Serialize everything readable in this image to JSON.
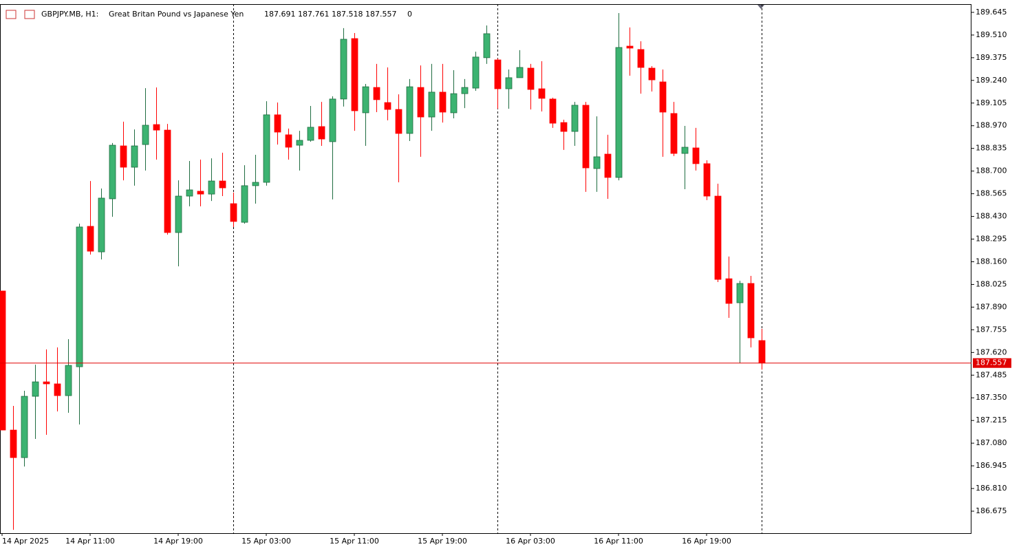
{
  "chart_data": {
    "type": "candlestick",
    "header": {
      "symbol": "GBPJPY.MB, H1:",
      "description": "Great Britan Pound vs Japanese Yen",
      "values": [
        187.691,
        187.761,
        187.518,
        187.557,
        0
      ]
    },
    "categories": [
      "14 Apr 2025",
      null,
      null,
      null,
      null,
      null,
      null,
      null,
      "14 Apr 11:00",
      null,
      null,
      null,
      null,
      null,
      null,
      null,
      "14 Apr 19:00",
      null,
      null,
      null,
      null,
      null,
      null,
      null,
      "15 Apr 03:00",
      null,
      null,
      null,
      null,
      null,
      null,
      null,
      "15 Apr 11:00",
      null,
      null,
      null,
      null,
      null,
      null,
      null,
      "15 Apr 19:00",
      null,
      null,
      null,
      null,
      null,
      null,
      null,
      "16 Apr 03:00",
      null,
      null,
      null,
      null,
      null,
      null,
      null,
      "16 Apr 11:00",
      null,
      null,
      null,
      null,
      null,
      null,
      null,
      "16 Apr 19:00",
      null,
      null,
      null,
      null,
      null
    ],
    "open": [
      187.986,
      187.158,
      186.994,
      187.359,
      187.445,
      187.433,
      187.363,
      187.535,
      188.371,
      188.219,
      188.535,
      188.85,
      188.723,
      188.858,
      188.977,
      188.944,
      188.334,
      188.551,
      188.58,
      188.563,
      188.641,
      188.506,
      188.395,
      188.613,
      188.633,
      189.035,
      188.916,
      188.854,
      188.883,
      188.965,
      188.875,
      189.129,
      189.489,
      189.047,
      189.198,
      189.108,
      189.067,
      188.924,
      189.198,
      189.022,
      189.17,
      189.047,
      189.161,
      189.194,
      189.375,
      189.362,
      189.19,
      189.256,
      189.313,
      189.19,
      189.129,
      188.989,
      188.936,
      189.092,
      188.715,
      188.801,
      188.662,
      189.444,
      189.424,
      189.313,
      189.231,
      189.043,
      188.805,
      188.838,
      188.744,
      188.551,
      188.059,
      187.916,
      188.031,
      187.691
    ],
    "high": [
      187.986,
      187.302,
      187.392,
      187.547,
      187.638,
      187.65,
      187.699,
      188.387,
      188.641,
      188.596,
      188.867,
      188.994,
      188.948,
      189.194,
      189.198,
      188.981,
      188.645,
      188.76,
      188.768,
      188.776,
      188.809,
      188.572,
      188.735,
      188.797,
      189.116,
      189.108,
      188.953,
      188.94,
      189.088,
      189.112,
      189.145,
      189.551,
      189.522,
      189.219,
      189.338,
      189.317,
      189.157,
      189.248,
      189.329,
      189.338,
      189.338,
      189.301,
      189.248,
      189.411,
      189.567,
      189.37,
      189.305,
      189.42,
      189.338,
      189.354,
      189.137,
      189.006,
      189.112,
      189.112,
      189.026,
      188.916,
      189.641,
      189.555,
      189.473,
      189.325,
      189.305,
      189.112,
      188.969,
      188.957,
      188.764,
      188.625,
      188.191,
      188.047,
      188.076,
      187.761
    ],
    "low": [
      187.158,
      186.564,
      186.941,
      187.105,
      187.13,
      187.269,
      187.261,
      187.191,
      188.203,
      188.174,
      188.428,
      188.645,
      188.613,
      188.703,
      188.768,
      188.322,
      188.133,
      188.49,
      188.49,
      188.522,
      188.551,
      188.367,
      188.387,
      188.506,
      188.613,
      188.858,
      188.768,
      188.703,
      188.875,
      188.85,
      188.531,
      189.084,
      188.94,
      188.85,
      189.051,
      189.002,
      188.633,
      188.879,
      188.785,
      188.94,
      188.989,
      189.014,
      189.075,
      189.178,
      189.338,
      189.071,
      189.071,
      189.256,
      189.067,
      189.055,
      188.957,
      188.826,
      188.85,
      188.576,
      188.576,
      188.535,
      188.645,
      189.268,
      189.161,
      189.174,
      188.785,
      188.789,
      188.592,
      188.703,
      188.527,
      188.039,
      187.826,
      187.556,
      187.65,
      187.518
    ],
    "close": [
      187.158,
      186.994,
      187.359,
      187.445,
      187.433,
      187.363,
      187.543,
      188.367,
      188.223,
      188.539,
      188.854,
      188.723,
      188.85,
      188.973,
      188.944,
      188.334,
      188.551,
      188.588,
      188.563,
      188.641,
      188.6,
      188.4,
      188.613,
      188.633,
      189.035,
      188.932,
      188.842,
      188.883,
      188.961,
      188.891,
      189.129,
      189.485,
      189.059,
      189.202,
      189.125,
      189.067,
      188.924,
      189.202,
      189.022,
      189.17,
      189.051,
      189.161,
      189.198,
      189.379,
      189.518,
      189.19,
      189.256,
      189.317,
      189.186,
      189.133,
      188.985,
      188.936,
      189.092,
      188.719,
      188.785,
      188.662,
      189.436,
      189.432,
      189.317,
      189.243,
      189.051,
      188.805,
      188.842,
      188.744,
      188.551,
      188.055,
      187.912,
      188.031,
      187.707,
      187.557
    ],
    "up_color": "#3cb371",
    "down_color": "#ff0000",
    "current_price": 187.557,
    "ylim": [
      186.544,
      189.694
    ],
    "yticks": [
      186.675,
      {
        "value": 186.81,
        "label": "186.810"
      },
      186.945,
      {
        "value": 187.08,
        "label": "187.080"
      },
      187.215,
      {
        "value": 187.35,
        "label": "187.350"
      },
      187.485,
      {
        "value": 187.62,
        "label": "187.620"
      },
      187.755,
      {
        "value": 187.89,
        "label": "187.890"
      },
      188.025,
      {
        "value": 188.16,
        "label": "188.160"
      },
      188.295,
      {
        "value": 188.43,
        "label": "188.430"
      },
      188.565,
      {
        "value": 188.7,
        "label": "188.700"
      },
      188.835,
      {
        "value": 188.97,
        "label": "188.970"
      },
      189.105,
      {
        "value": 189.24,
        "label": "189.240"
      },
      189.375,
      {
        "value": 189.51,
        "label": "189.510"
      },
      189.645
    ]
  }
}
